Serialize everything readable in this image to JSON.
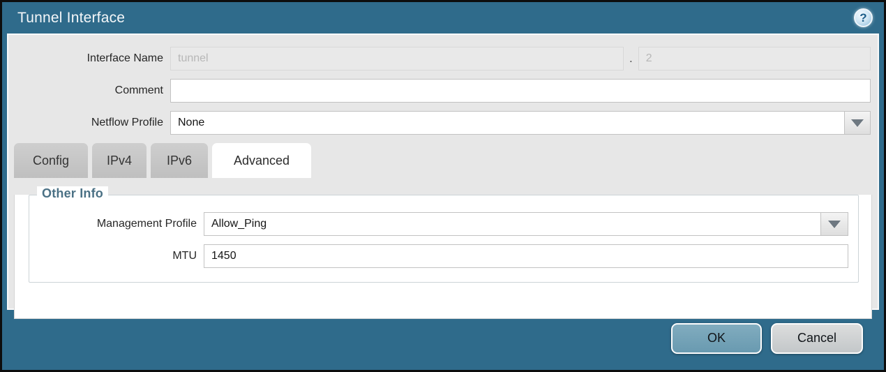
{
  "dialog": {
    "title": "Tunnel Interface",
    "help_glyph": "?",
    "fields": {
      "interface_name": {
        "label": "Interface Name",
        "value": "tunnel",
        "separator": ".",
        "sub_value": "2"
      },
      "comment": {
        "label": "Comment",
        "value": ""
      },
      "netflow_profile": {
        "label": "Netflow Profile",
        "value": "None"
      }
    },
    "tabs": [
      {
        "label": "Config",
        "active": false
      },
      {
        "label": "IPv4",
        "active": false
      },
      {
        "label": "IPv6",
        "active": false
      },
      {
        "label": "Advanced",
        "active": true
      }
    ],
    "advanced": {
      "section_title": "Other Info",
      "management_profile": {
        "label": "Management Profile",
        "value": "Allow_Ping"
      },
      "mtu": {
        "label": "MTU",
        "value": "1450"
      }
    },
    "buttons": {
      "ok": "OK",
      "cancel": "Cancel"
    },
    "colors": {
      "frame_teal": "#2f6b8b",
      "body_gray": "#e7e7e7",
      "ok_button": "#74a3b8",
      "legend_blue": "#4b7185"
    }
  }
}
